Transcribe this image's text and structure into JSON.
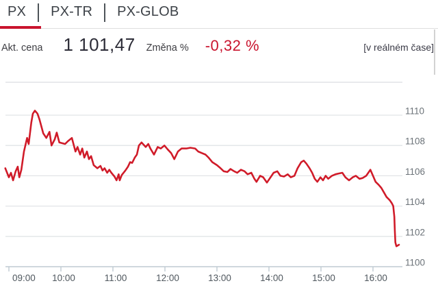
{
  "tabs": {
    "items": [
      {
        "label": "PX",
        "active": true
      },
      {
        "label": "PX-TR",
        "active": false
      },
      {
        "label": "PX-GLOB",
        "active": false
      }
    ]
  },
  "quote": {
    "price_label": "Akt. cena",
    "price_value": "1 101,47",
    "change_label": "Změna %",
    "change_value": "-0,32 %",
    "realtime_note": "[v reálném čase]"
  },
  "colors": {
    "accent_red": "#c9142e",
    "line_red": "#d01b29",
    "grid": "#e1e4e7",
    "axis": "#bfcad2",
    "y_label": "#6b7278",
    "x_label": "#4f575e"
  },
  "chart_data": {
    "type": "line",
    "title": "PX index intraday price",
    "xlabel": "",
    "ylabel": "",
    "x_ticks": [
      "09:00",
      "10:00",
      "11:00",
      "12:00",
      "13:00",
      "14:00",
      "15:00",
      "16:00"
    ],
    "y_ticks": [
      1110,
      1108,
      1106,
      1104,
      1102,
      1100
    ],
    "ylim": [
      1100,
      1112
    ],
    "xlim_hours": [
      8.93,
      16.57
    ],
    "grid": true,
    "legend": false,
    "series": [
      {
        "name": "PX",
        "color": "#d01b29",
        "points": [
          [
            8.93,
            1106.5
          ],
          [
            9.0,
            1105.9
          ],
          [
            9.04,
            1106.2
          ],
          [
            9.08,
            1105.7
          ],
          [
            9.13,
            1106.3
          ],
          [
            9.17,
            1106.6
          ],
          [
            9.2,
            1105.9
          ],
          [
            9.24,
            1106.4
          ],
          [
            9.29,
            1107.6
          ],
          [
            9.35,
            1108.5
          ],
          [
            9.38,
            1108.1
          ],
          [
            9.43,
            1109.5
          ],
          [
            9.46,
            1110.1
          ],
          [
            9.5,
            1110.3
          ],
          [
            9.55,
            1110.1
          ],
          [
            9.59,
            1109.7
          ],
          [
            9.66,
            1108.8
          ],
          [
            9.72,
            1108.5
          ],
          [
            9.78,
            1108.9
          ],
          [
            9.82,
            1108.0
          ],
          [
            9.88,
            1108.4
          ],
          [
            9.92,
            1108.85
          ],
          [
            9.97,
            1108.2
          ],
          [
            10.08,
            1108.1
          ],
          [
            10.14,
            1108.3
          ],
          [
            10.21,
            1108.5
          ],
          [
            10.28,
            1107.6
          ],
          [
            10.32,
            1107.9
          ],
          [
            10.37,
            1107.4
          ],
          [
            10.41,
            1107.8
          ],
          [
            10.45,
            1107.2
          ],
          [
            10.5,
            1107.6
          ],
          [
            10.54,
            1107.1
          ],
          [
            10.58,
            1107.3
          ],
          [
            10.63,
            1106.7
          ],
          [
            10.7,
            1106.5
          ],
          [
            10.76,
            1106.65
          ],
          [
            10.8,
            1106.35
          ],
          [
            10.84,
            1106.5
          ],
          [
            10.89,
            1106.2
          ],
          [
            10.93,
            1106.4
          ],
          [
            10.97,
            1106.2
          ],
          [
            11.03,
            1105.95
          ],
          [
            11.07,
            1105.7
          ],
          [
            11.11,
            1106.1
          ],
          [
            11.13,
            1105.7
          ],
          [
            11.17,
            1106.05
          ],
          [
            11.24,
            1106.35
          ],
          [
            11.29,
            1106.6
          ],
          [
            11.33,
            1106.9
          ],
          [
            11.37,
            1106.85
          ],
          [
            11.42,
            1107.2
          ],
          [
            11.46,
            1107.4
          ],
          [
            11.5,
            1108.0
          ],
          [
            11.55,
            1108.2
          ],
          [
            11.63,
            1107.9
          ],
          [
            11.68,
            1108.1
          ],
          [
            11.72,
            1107.8
          ],
          [
            11.79,
            1107.4
          ],
          [
            11.86,
            1107.9
          ],
          [
            11.92,
            1107.8
          ],
          [
            11.99,
            1108.0
          ],
          [
            12.05,
            1107.75
          ],
          [
            12.12,
            1107.5
          ],
          [
            12.18,
            1107.1
          ],
          [
            12.25,
            1107.6
          ],
          [
            12.32,
            1107.8
          ],
          [
            12.41,
            1107.8
          ],
          [
            12.49,
            1107.85
          ],
          [
            12.58,
            1107.8
          ],
          [
            12.64,
            1107.6
          ],
          [
            12.71,
            1107.5
          ],
          [
            12.78,
            1107.4
          ],
          [
            12.84,
            1107.2
          ],
          [
            12.91,
            1106.9
          ],
          [
            13.0,
            1106.7
          ],
          [
            13.07,
            1106.5
          ],
          [
            13.13,
            1106.3
          ],
          [
            13.2,
            1106.25
          ],
          [
            13.26,
            1106.45
          ],
          [
            13.33,
            1106.3
          ],
          [
            13.39,
            1106.2
          ],
          [
            13.46,
            1106.4
          ],
          [
            13.53,
            1106.3
          ],
          [
            13.59,
            1106.1
          ],
          [
            13.66,
            1106.2
          ],
          [
            13.72,
            1105.8
          ],
          [
            13.76,
            1105.6
          ],
          [
            13.83,
            1106.0
          ],
          [
            13.89,
            1105.9
          ],
          [
            13.96,
            1105.55
          ],
          [
            14.03,
            1105.9
          ],
          [
            14.09,
            1106.2
          ],
          [
            14.16,
            1106.3
          ],
          [
            14.22,
            1106.0
          ],
          [
            14.29,
            1105.95
          ],
          [
            14.36,
            1106.1
          ],
          [
            14.42,
            1105.9
          ],
          [
            14.49,
            1106.0
          ],
          [
            14.55,
            1106.5
          ],
          [
            14.62,
            1106.9
          ],
          [
            14.67,
            1107.0
          ],
          [
            14.72,
            1106.8
          ],
          [
            14.78,
            1106.5
          ],
          [
            14.83,
            1106.2
          ],
          [
            14.88,
            1105.8
          ],
          [
            14.93,
            1105.6
          ],
          [
            14.99,
            1105.9
          ],
          [
            15.04,
            1105.7
          ],
          [
            15.09,
            1106.0
          ],
          [
            15.14,
            1105.8
          ],
          [
            15.21,
            1106.0
          ],
          [
            15.28,
            1106.1
          ],
          [
            15.34,
            1106.15
          ],
          [
            15.41,
            1106.2
          ],
          [
            15.47,
            1105.9
          ],
          [
            15.54,
            1105.7
          ],
          [
            15.61,
            1105.9
          ],
          [
            15.67,
            1106.0
          ],
          [
            15.74,
            1105.8
          ],
          [
            15.8,
            1105.85
          ],
          [
            15.87,
            1106.0
          ],
          [
            15.95,
            1106.4
          ],
          [
            16.0,
            1106.0
          ],
          [
            16.05,
            1105.6
          ],
          [
            16.11,
            1105.4
          ],
          [
            16.16,
            1105.2
          ],
          [
            16.21,
            1104.9
          ],
          [
            16.26,
            1104.6
          ],
          [
            16.32,
            1104.4
          ],
          [
            16.36,
            1104.2
          ],
          [
            16.39,
            1104.0
          ],
          [
            16.41,
            1103.3
          ],
          [
            16.42,
            1102.4
          ],
          [
            16.43,
            1101.6
          ],
          [
            16.45,
            1101.35
          ],
          [
            16.5,
            1101.45
          ]
        ]
      }
    ]
  }
}
